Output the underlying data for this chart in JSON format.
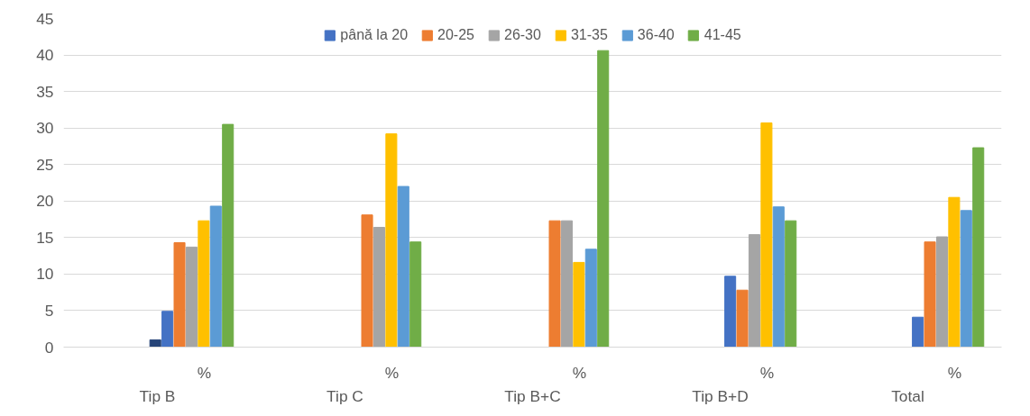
{
  "chart_data": {
    "type": "bar",
    "categories": [
      "Tip B",
      "Tip C",
      "Tip B+C",
      "Tip B+D",
      "Total"
    ],
    "series": [
      {
        "color": "#264478",
        "values": [
          1,
          null,
          null,
          null,
          null
        ]
      },
      {
        "name": "până la 20",
        "color": "#4472c4",
        "values": [
          4.9,
          null,
          null,
          9.7,
          4.1
        ]
      },
      {
        "name": "20-25",
        "color": "#ed7d31",
        "values": [
          14.3,
          18.1,
          17.3,
          7.8,
          14.4
        ]
      },
      {
        "name": "26-30",
        "color": "#a5a5a5",
        "values": [
          13.7,
          16.4,
          17.3,
          15.4,
          15.1
        ]
      },
      {
        "name": "31-35",
        "color": "#ffc000",
        "values": [
          17.3,
          29.2,
          11.6,
          30.7,
          20.5
        ]
      },
      {
        "name": "36-40",
        "color": "#5b9bd5",
        "values": [
          19.3,
          22.0,
          13.4,
          19.2,
          18.7
        ]
      },
      {
        "name": "41-45",
        "color": "#70ad47",
        "values": [
          30.5,
          14.4,
          40.6,
          17.3,
          27.3
        ]
      }
    ],
    "annotations": [
      "%",
      "%",
      "%",
      "%",
      "%"
    ],
    "ylim": [
      0,
      45
    ],
    "yticks": [
      0,
      5,
      10,
      15,
      20,
      25,
      30,
      35,
      40,
      45
    ],
    "grid": "y",
    "legend": "top"
  }
}
